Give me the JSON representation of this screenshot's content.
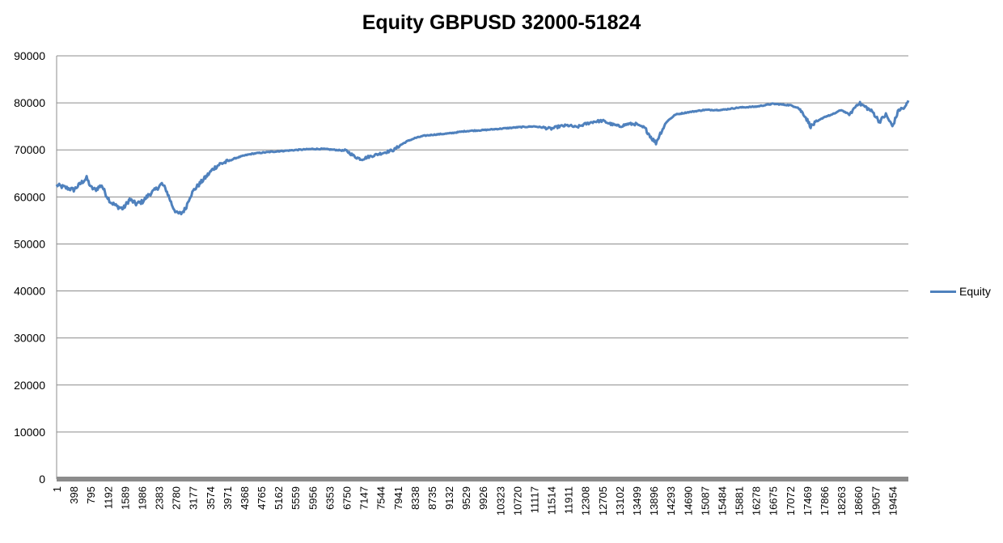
{
  "chart_data": {
    "type": "line",
    "title": "Equity GBPUSD 32000-51824",
    "xlabel": "",
    "ylabel": "",
    "ylim": [
      0,
      90000
    ],
    "yticks": [
      0,
      10000,
      20000,
      30000,
      40000,
      50000,
      60000,
      70000,
      80000,
      90000
    ],
    "xlim": [
      1,
      19824
    ],
    "xticks": [
      1,
      398,
      795,
      1192,
      1589,
      1986,
      2383,
      2780,
      3177,
      3574,
      3971,
      4368,
      4765,
      5162,
      5559,
      5956,
      6353,
      6750,
      7147,
      7544,
      7941,
      8338,
      8735,
      9132,
      9529,
      9926,
      10323,
      10720,
      11117,
      11514,
      11911,
      12308,
      12705,
      13102,
      13499,
      13896,
      14293,
      14690,
      15087,
      15484,
      15881,
      16278,
      16675,
      17072,
      17469,
      17866,
      18263,
      18660,
      19057,
      19454
    ],
    "grid": true,
    "legend_position": "right",
    "series": [
      {
        "name": "Equity",
        "color": "#4f81bd",
        "x": [
          1,
          200,
          400,
          550,
          700,
          800,
          900,
          1050,
          1150,
          1250,
          1400,
          1550,
          1700,
          1850,
          2000,
          2150,
          2300,
          2450,
          2550,
          2700,
          2800,
          2900,
          3000,
          3100,
          3200,
          3350,
          3500,
          3650,
          3800,
          3971,
          4150,
          4368,
          4565,
          4765,
          5000,
          5300,
          5600,
          5956,
          6200,
          6500,
          6750,
          6950,
          7100,
          7250,
          7450,
          7650,
          7850,
          8000,
          8150,
          8338,
          8550,
          8735,
          9132,
          9529,
          9926,
          10323,
          10720,
          11117,
          11514,
          11700,
          11911,
          12100,
          12308,
          12500,
          12705,
          12900,
          13102,
          13300,
          13499,
          13700,
          13850,
          13950,
          14050,
          14200,
          14400,
          14690,
          15087,
          15484,
          15881,
          16278,
          16675,
          17072,
          17250,
          17400,
          17550,
          17700,
          17866,
          18050,
          18263,
          18450,
          18660,
          18850,
          19000,
          19150,
          19300,
          19454,
          19600,
          19750,
          19824
        ],
        "values": [
          62500,
          62000,
          61500,
          62800,
          64000,
          62000,
          61500,
          62500,
          60500,
          59000,
          58000,
          57500,
          59500,
          58500,
          59000,
          60500,
          61500,
          62800,
          61500,
          58000,
          56500,
          56500,
          57500,
          60000,
          61500,
          63000,
          64500,
          66000,
          67000,
          67500,
          68200,
          68800,
          69200,
          69400,
          69600,
          69800,
          70000,
          70200,
          70200,
          70000,
          69800,
          68500,
          68000,
          68500,
          69000,
          69500,
          70000,
          71000,
          71800,
          72500,
          73000,
          73200,
          73500,
          74000,
          74200,
          74500,
          74800,
          75000,
          74500,
          75000,
          75200,
          74800,
          75500,
          76000,
          76200,
          75500,
          75000,
          75500,
          75500,
          74500,
          72500,
          71500,
          73500,
          76000,
          77500,
          78000,
          78500,
          78500,
          79000,
          79200,
          79800,
          79500,
          79000,
          77500,
          75000,
          76000,
          77000,
          77500,
          78500,
          77500,
          80000,
          79000,
          78000,
          76000,
          77500,
          75000,
          78500,
          79000,
          80500
        ]
      }
    ]
  }
}
